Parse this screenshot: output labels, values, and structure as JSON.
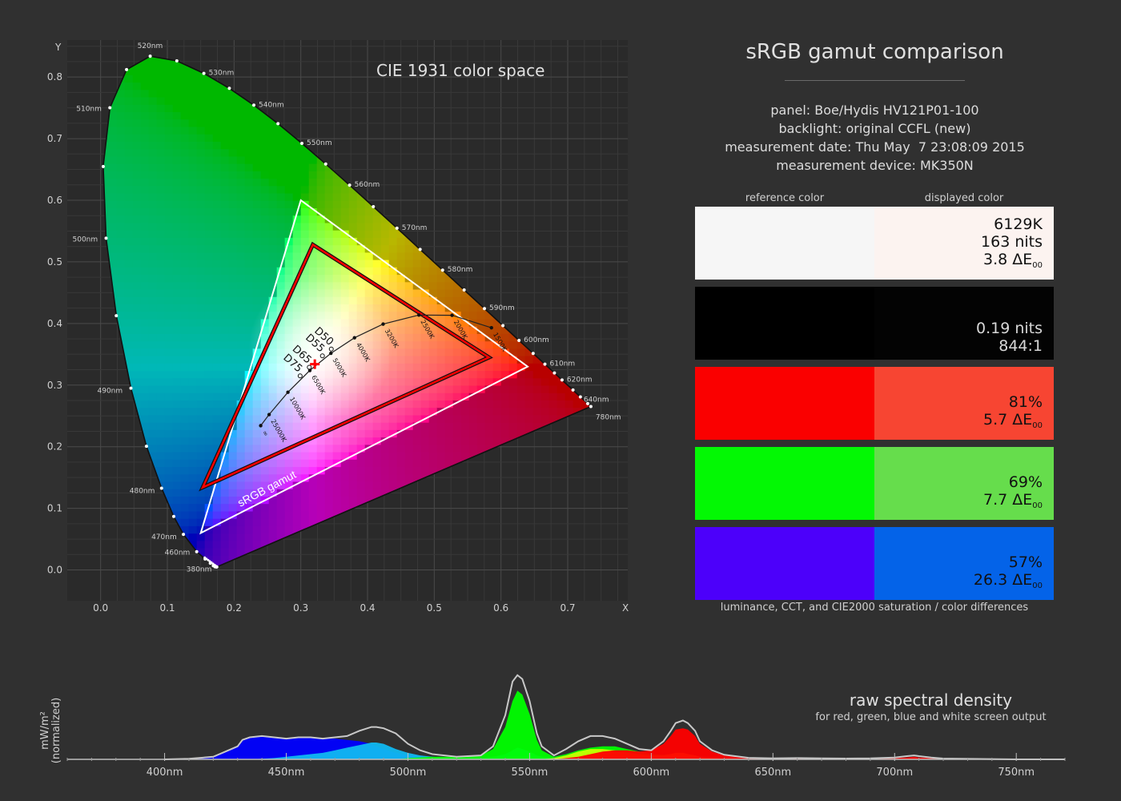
{
  "cie": {
    "title": "CIE 1931 color space",
    "x_label": "X",
    "y_label": "Y",
    "srgb_label": "sRGB gamut"
  },
  "panel": {
    "title": "sRGB gamut comparison",
    "lines": [
      "panel: Boe/Hydis HV121P01-100",
      "backlight: original CCFL (new)",
      "measurement date: Thu May  7 23:08:09 2015",
      "measurement device: MK350N"
    ],
    "reference_header": "reference color",
    "displayed_header": "displayed color",
    "footnote": "luminance, CCT, and CIE2000 saturation / color differences",
    "swatches": [
      {
        "name": "white",
        "ref": "#f6f6f6",
        "disp": "#fcf3f0",
        "text_color": "#111111",
        "lines": [
          "6129K",
          "163 nits"
        ],
        "de": "3.8"
      },
      {
        "name": "black",
        "ref": "#000000",
        "disp": "#030303",
        "text_color": "#d8d8d8",
        "lines": [
          "0.19 nits",
          "844:1"
        ],
        "de": ""
      },
      {
        "name": "red",
        "ref": "#fa0000",
        "disp": "#f74532",
        "text_color": "#111111",
        "lines": [
          "81%"
        ],
        "de": "5.7"
      },
      {
        "name": "green",
        "ref": "#03f804",
        "disp": "#66dd4c",
        "text_color": "#111111",
        "lines": [
          "69%"
        ],
        "de": "7.7"
      },
      {
        "name": "blue",
        "ref": "#4c00fa",
        "disp": "#0463e8",
        "text_color": "#111111",
        "lines": [
          "57%"
        ],
        "de": "26.3"
      }
    ]
  },
  "spectrum": {
    "title": "raw spectral density",
    "subtitle": "for red, green, blue and white screen output",
    "y_label_1": "mW/m²",
    "y_label_2": "(normalized)"
  },
  "chart_data": [
    {
      "type": "scatter",
      "title": "CIE 1931 color space",
      "xlabel": "X",
      "ylabel": "Y",
      "xlim": [
        -0.05,
        0.79
      ],
      "ylim": [
        -0.05,
        0.86
      ],
      "x_ticks": [
        "0.0",
        "0.1",
        "0.2",
        "0.3",
        "0.4",
        "0.5",
        "0.6",
        "0.7"
      ],
      "y_ticks": [
        "0.0",
        "0.1",
        "0.2",
        "0.3",
        "0.4",
        "0.5",
        "0.6",
        "0.7",
        "0.8"
      ],
      "grid": true,
      "spectral_locus": [
        {
          "nm": 380,
          "x": 0.1741,
          "y": 0.005
        },
        {
          "nm": 400,
          "x": 0.1733,
          "y": 0.0048
        },
        {
          "nm": 420,
          "x": 0.1714,
          "y": 0.0051
        },
        {
          "nm": 430,
          "x": 0.1689,
          "y": 0.0069
        },
        {
          "nm": 440,
          "x": 0.1644,
          "y": 0.0109
        },
        {
          "nm": 450,
          "x": 0.1566,
          "y": 0.0177
        },
        {
          "nm": 460,
          "x": 0.144,
          "y": 0.0297
        },
        {
          "nm": 470,
          "x": 0.1241,
          "y": 0.0578
        },
        {
          "nm": 475,
          "x": 0.1096,
          "y": 0.0868
        },
        {
          "nm": 480,
          "x": 0.0913,
          "y": 0.1327
        },
        {
          "nm": 485,
          "x": 0.0687,
          "y": 0.2007
        },
        {
          "nm": 490,
          "x": 0.0454,
          "y": 0.295
        },
        {
          "nm": 495,
          "x": 0.0235,
          "y": 0.4127
        },
        {
          "nm": 500,
          "x": 0.0082,
          "y": 0.5384
        },
        {
          "nm": 505,
          "x": 0.0039,
          "y": 0.6548
        },
        {
          "nm": 510,
          "x": 0.0139,
          "y": 0.7502
        },
        {
          "nm": 515,
          "x": 0.0389,
          "y": 0.812
        },
        {
          "nm": 520,
          "x": 0.0743,
          "y": 0.8338
        },
        {
          "nm": 525,
          "x": 0.1142,
          "y": 0.8262
        },
        {
          "nm": 530,
          "x": 0.1547,
          "y": 0.8059
        },
        {
          "nm": 535,
          "x": 0.1929,
          "y": 0.7816
        },
        {
          "nm": 540,
          "x": 0.2296,
          "y": 0.7543
        },
        {
          "nm": 545,
          "x": 0.2658,
          "y": 0.7243
        },
        {
          "nm": 550,
          "x": 0.3016,
          "y": 0.6923
        },
        {
          "nm": 555,
          "x": 0.3373,
          "y": 0.6589
        },
        {
          "nm": 560,
          "x": 0.3731,
          "y": 0.6245
        },
        {
          "nm": 565,
          "x": 0.4087,
          "y": 0.5896
        },
        {
          "nm": 570,
          "x": 0.4441,
          "y": 0.5547
        },
        {
          "nm": 575,
          "x": 0.4788,
          "y": 0.5202
        },
        {
          "nm": 580,
          "x": 0.5125,
          "y": 0.4866
        },
        {
          "nm": 585,
          "x": 0.5448,
          "y": 0.4544
        },
        {
          "nm": 590,
          "x": 0.5752,
          "y": 0.4242
        },
        {
          "nm": 595,
          "x": 0.6029,
          "y": 0.3965
        },
        {
          "nm": 600,
          "x": 0.627,
          "y": 0.3725
        },
        {
          "nm": 605,
          "x": 0.6482,
          "y": 0.3514
        },
        {
          "nm": 610,
          "x": 0.6658,
          "y": 0.334
        },
        {
          "nm": 615,
          "x": 0.6801,
          "y": 0.3197
        },
        {
          "nm": 620,
          "x": 0.6915,
          "y": 0.3083
        },
        {
          "nm": 630,
          "x": 0.7079,
          "y": 0.292
        },
        {
          "nm": 640,
          "x": 0.719,
          "y": 0.2809
        },
        {
          "nm": 660,
          "x": 0.73,
          "y": 0.27
        },
        {
          "nm": 700,
          "x": 0.7347,
          "y": 0.2653
        },
        {
          "nm": 780,
          "x": 0.7347,
          "y": 0.2653
        }
      ],
      "wavelength_labels": [
        "380nm",
        "460nm",
        "470nm",
        "480nm",
        "490nm",
        "500nm",
        "510nm",
        "520nm",
        "530nm",
        "540nm",
        "550nm",
        "560nm",
        "570nm",
        "580nm",
        "590nm",
        "600nm",
        "610nm",
        "620nm",
        "640nm",
        "780nm"
      ],
      "srgb_gamut": [
        {
          "x": 0.64,
          "y": 0.33
        },
        {
          "x": 0.3,
          "y": 0.6
        },
        {
          "x": 0.15,
          "y": 0.06
        }
      ],
      "measured_gamut": [
        {
          "x": 0.582,
          "y": 0.345
        },
        {
          "x": 0.318,
          "y": 0.528
        },
        {
          "x": 0.153,
          "y": 0.134
        }
      ],
      "measured_white": {
        "x": 0.321,
        "y": 0.334
      },
      "planckian_locus": [
        {
          "K": "1500K",
          "x": 0.5857,
          "y": 0.3931
        },
        {
          "K": "2000K",
          "x": 0.5267,
          "y": 0.4133
        },
        {
          "K": "2500K",
          "x": 0.477,
          "y": 0.4137
        },
        {
          "K": "3200K",
          "x": 0.4234,
          "y": 0.399
        },
        {
          "K": "4000K",
          "x": 0.3805,
          "y": 0.3768
        },
        {
          "K": "5000K",
          "x": 0.3451,
          "y": 0.3516
        },
        {
          "K": "6500K",
          "x": 0.3135,
          "y": 0.3237
        },
        {
          "K": "10000K",
          "x": 0.2807,
          "y": 0.2884
        },
        {
          "K": "25000K",
          "x": 0.2525,
          "y": 0.2522
        },
        {
          "K": "∞",
          "x": 0.2399,
          "y": 0.2342
        }
      ],
      "illuminants": [
        {
          "name": "D50",
          "x": 0.3457,
          "y": 0.3585
        },
        {
          "name": "D55",
          "x": 0.3324,
          "y": 0.3474
        },
        {
          "name": "D65",
          "x": 0.3127,
          "y": 0.329
        },
        {
          "name": "D75",
          "x": 0.299,
          "y": 0.3149
        }
      ]
    },
    {
      "type": "area",
      "title": "raw spectral density",
      "subtitle": "for red, green, blue and white screen output",
      "ylabel": "mW/m² (normalized)",
      "xlim": [
        360,
        770
      ],
      "x_ticks": [
        "400nm",
        "450nm",
        "500nm",
        "550nm",
        "600nm",
        "650nm",
        "700nm",
        "750nm"
      ],
      "x": [
        400,
        410,
        420,
        425,
        430,
        432,
        435,
        440,
        445,
        450,
        455,
        460,
        465,
        470,
        475,
        480,
        485,
        487,
        490,
        495,
        500,
        505,
        510,
        520,
        530,
        535,
        540,
        543,
        545,
        547,
        550,
        553,
        555,
        560,
        565,
        570,
        575,
        580,
        585,
        590,
        595,
        600,
        605,
        608,
        610,
        613,
        615,
        618,
        620,
        625,
        630,
        640,
        650,
        660,
        670,
        680,
        690,
        700,
        705,
        708,
        710,
        715,
        720,
        750,
        770
      ],
      "series": [
        {
          "name": "blue",
          "color": "#0000ff",
          "values": [
            0.0,
            0.005,
            0.02,
            0.06,
            0.1,
            0.15,
            0.17,
            0.18,
            0.17,
            0.16,
            0.17,
            0.17,
            0.16,
            0.16,
            0.15,
            0.14,
            0.12,
            0.1,
            0.08,
            0.05,
            0.03,
            0.02,
            0.015,
            0.01,
            0.01,
            0.01,
            0.005,
            0,
            0,
            0,
            0,
            0,
            0,
            0,
            0,
            0,
            0,
            0,
            0,
            0,
            0,
            0,
            0,
            0,
            0,
            0,
            0,
            0,
            0,
            0,
            0,
            0,
            0,
            0,
            0,
            0,
            0,
            0,
            0,
            0,
            0,
            0,
            0,
            0,
            0
          ]
        },
        {
          "name": "cyan (blue+green)",
          "color": "#10b8f0",
          "values": [
            0,
            0,
            0,
            0,
            0,
            0,
            0,
            0.005,
            0.01,
            0.02,
            0.03,
            0.04,
            0.05,
            0.07,
            0.09,
            0.11,
            0.13,
            0.13,
            0.12,
            0.08,
            0.05,
            0.03,
            0.02,
            0.01,
            0.01,
            0.02,
            0.04,
            0.07,
            0.09,
            0.08,
            0.06,
            0.03,
            0.02,
            0.005,
            0,
            0,
            0,
            0,
            0,
            0,
            0,
            0,
            0,
            0,
            0,
            0,
            0,
            0,
            0,
            0,
            0,
            0,
            0,
            0,
            0,
            0,
            0,
            0,
            0,
            0,
            0,
            0,
            0,
            0,
            0
          ]
        },
        {
          "name": "green",
          "color": "#00ff00",
          "values": [
            0,
            0,
            0,
            0,
            0,
            0,
            0,
            0,
            0,
            0,
            0,
            0,
            0,
            0,
            0,
            0,
            0,
            0,
            0,
            0,
            0.01,
            0.015,
            0.02,
            0.02,
            0.03,
            0.08,
            0.25,
            0.45,
            0.53,
            0.5,
            0.35,
            0.15,
            0.07,
            0.02,
            0.04,
            0.07,
            0.09,
            0.1,
            0.1,
            0.08,
            0.06,
            0.04,
            0.035,
            0.04,
            0.05,
            0.05,
            0.04,
            0.03,
            0.02,
            0.01,
            0.005,
            0,
            0,
            0,
            0,
            0,
            0,
            0,
            0,
            0,
            0,
            0,
            0,
            0,
            0
          ]
        },
        {
          "name": "yellow (green+red)",
          "color": "#c8ff00",
          "values": [
            0,
            0,
            0,
            0,
            0,
            0,
            0,
            0,
            0,
            0,
            0,
            0,
            0,
            0,
            0,
            0,
            0,
            0,
            0,
            0,
            0,
            0,
            0,
            0,
            0,
            0,
            0,
            0,
            0,
            0,
            0,
            0,
            0,
            0.01,
            0.03,
            0.06,
            0.08,
            0.08,
            0.07,
            0.05,
            0.04,
            0.03,
            0.03,
            0.04,
            0.05,
            0.05,
            0.04,
            0.03,
            0.02,
            0.01,
            0.005,
            0,
            0,
            0,
            0,
            0,
            0,
            0,
            0,
            0,
            0,
            0,
            0,
            0,
            0
          ]
        },
        {
          "name": "red",
          "color": "#ff0000",
          "values": [
            0,
            0,
            0,
            0,
            0,
            0,
            0,
            0,
            0,
            0,
            0,
            0,
            0,
            0,
            0,
            0,
            0,
            0,
            0,
            0,
            0,
            0,
            0,
            0,
            0,
            0,
            0,
            0,
            0,
            0,
            0,
            0,
            0,
            0,
            0.01,
            0.02,
            0.04,
            0.06,
            0.07,
            0.07,
            0.06,
            0.07,
            0.12,
            0.18,
            0.23,
            0.24,
            0.23,
            0.18,
            0.12,
            0.06,
            0.03,
            0.01,
            0.005,
            0.01,
            0.005,
            0.005,
            0.005,
            0.01,
            0.015,
            0.02,
            0.015,
            0.01,
            0.005,
            0.0,
            0.0
          ]
        },
        {
          "name": "white",
          "color": "#b8b8b8",
          "values": [
            0.0,
            0.005,
            0.02,
            0.06,
            0.1,
            0.15,
            0.17,
            0.18,
            0.17,
            0.16,
            0.17,
            0.17,
            0.16,
            0.17,
            0.18,
            0.22,
            0.25,
            0.25,
            0.24,
            0.2,
            0.12,
            0.07,
            0.04,
            0.02,
            0.03,
            0.1,
            0.34,
            0.6,
            0.65,
            0.62,
            0.45,
            0.2,
            0.1,
            0.03,
            0.08,
            0.14,
            0.18,
            0.18,
            0.16,
            0.12,
            0.08,
            0.07,
            0.14,
            0.22,
            0.28,
            0.3,
            0.28,
            0.22,
            0.14,
            0.07,
            0.035,
            0.012,
            0.008,
            0.01,
            0.008,
            0.006,
            0.008,
            0.014,
            0.025,
            0.03,
            0.025,
            0.014,
            0.006,
            0.0,
            0.0
          ]
        }
      ]
    }
  ]
}
